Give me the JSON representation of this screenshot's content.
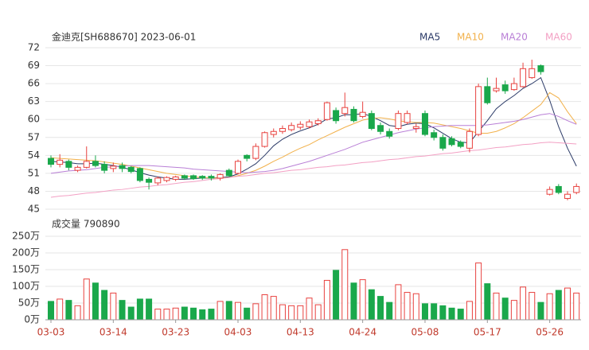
{
  "chart_data": [
    {
      "type": "candlestick",
      "title": "金迪克[SH688670] 2023-06-01",
      "up_color": "#e8423f",
      "down_color": "#1aa84b",
      "open": [
        53.5,
        52.5,
        53,
        51.5,
        52,
        53,
        52.5,
        51.8,
        52.3,
        52,
        51.8,
        50,
        49.4,
        49.8,
        50,
        50.6,
        50.6,
        50.5,
        50.5,
        50.2,
        51.5,
        51,
        54,
        53.5,
        55.5,
        57.5,
        58,
        58.3,
        58.7,
        58.8,
        59.3,
        60,
        61.5,
        61,
        61.7,
        60.5,
        61,
        59,
        58,
        58.5,
        59.5,
        58.5,
        61,
        57.8,
        57,
        56.8,
        56.2,
        55.2,
        57.5,
        65.5,
        64.8,
        65.8,
        65,
        65.5,
        67,
        69,
        47.5,
        48.8,
        46.8,
        47.8
      ],
      "high": [
        54,
        54.2,
        53.3,
        52.3,
        55.5,
        54,
        53,
        52.8,
        52.8,
        52.2,
        52,
        50.3,
        50.5,
        50.5,
        50.6,
        50.8,
        50.8,
        50.7,
        50.8,
        51,
        51.8,
        53.3,
        54.2,
        56,
        58,
        58.5,
        59,
        59.5,
        59.7,
        60,
        60.2,
        63,
        62,
        64.5,
        62.2,
        63,
        61.5,
        59.5,
        58.5,
        61.5,
        61.5,
        59.3,
        61.5,
        58.3,
        57.5,
        57.2,
        56.5,
        58.5,
        66,
        67,
        67,
        66.5,
        67,
        69.5,
        70,
        69.2,
        48.8,
        49.2,
        48,
        49.3
      ],
      "low": [
        52,
        52,
        51.5,
        51.2,
        51.8,
        52,
        51,
        51.2,
        51.2,
        51,
        49.5,
        48.3,
        49,
        49.5,
        49.7,
        49.9,
        49.9,
        49.9,
        49.8,
        49.8,
        50.4,
        50.8,
        53,
        53.2,
        55.3,
        57,
        57.6,
        58,
        58.3,
        58.5,
        59,
        59.8,
        59.3,
        60.5,
        59.5,
        60.2,
        58.2,
        57.5,
        56.8,
        58.2,
        59.2,
        57.8,
        57.2,
        56.5,
        54.8,
        55.5,
        55.2,
        54.5,
        57.2,
        62.5,
        64.5,
        64.3,
        64.8,
        65.3,
        66.8,
        67.5,
        47.3,
        47.5,
        46.5,
        47.5
      ],
      "close": [
        52.5,
        53.2,
        52,
        52,
        53,
        52.3,
        51.5,
        52.2,
        51.8,
        51.3,
        49.8,
        49.5,
        50.2,
        50.3,
        50.4,
        50.2,
        50.1,
        50.2,
        50.2,
        50.8,
        50.6,
        53,
        53.5,
        55.5,
        57.8,
        58,
        58.5,
        59,
        59.2,
        59.6,
        59.8,
        62.8,
        59.8,
        62,
        59.8,
        61.2,
        58.5,
        58,
        57.2,
        61,
        61,
        58.8,
        57.5,
        57,
        55.2,
        55.8,
        55.5,
        58,
        65.5,
        62.8,
        65.2,
        64.8,
        66,
        68.5,
        68.5,
        68,
        48.3,
        47.8,
        47.5,
        48.8
      ],
      "series": [
        {
          "name": "MA5",
          "color": "#2b3a67",
          "values": [
            53.0,
            52.9,
            52.8,
            52.6,
            52.6,
            52.7,
            52.5,
            52.3,
            52.0,
            51.6,
            51.1,
            50.7,
            50.4,
            50.2,
            50.0,
            50.0,
            50.1,
            50.2,
            50.2,
            50.3,
            50.4,
            50.9,
            51.7,
            52.6,
            54.0,
            55.6,
            56.7,
            57.5,
            58.1,
            58.6,
            59.2,
            60.1,
            60.3,
            60.8,
            60.8,
            61.0,
            60.5,
            59.8,
            59.0,
            58.8,
            59.2,
            59.4,
            59.3,
            58.6,
            57.7,
            56.8,
            56.2,
            56.1,
            58.0,
            59.8,
            61.8,
            63.0,
            64.0,
            65.2,
            66.0,
            67.0,
            63.2,
            58.8,
            55.2,
            52.2
          ]
        },
        {
          "name": "MA10",
          "color": "#f2b14b",
          "values": [
            53.6,
            53.5,
            53.4,
            53.3,
            53.2,
            53.1,
            52.9,
            52.7,
            52.5,
            52.2,
            51.9,
            51.6,
            51.3,
            51.0,
            50.8,
            50.6,
            50.4,
            50.3,
            50.2,
            50.2,
            50.3,
            50.6,
            51.0,
            51.5,
            52.2,
            53.0,
            53.7,
            54.5,
            55.2,
            55.8,
            56.6,
            57.3,
            58.0,
            58.7,
            59.3,
            59.9,
            60.2,
            60.3,
            60.1,
            59.8,
            59.6,
            59.5,
            59.5,
            59.4,
            59.1,
            58.8,
            58.5,
            58.1,
            57.7,
            57.7,
            58.0,
            58.6,
            59.3,
            60.3,
            61.4,
            62.5,
            64.5,
            63.6,
            61.3,
            59.3
          ]
        },
        {
          "name": "MA20",
          "color": "#b97fd6",
          "values": [
            51.0,
            51.2,
            51.4,
            51.5,
            51.6,
            51.8,
            52.0,
            52.1,
            52.2,
            52.3,
            52.3,
            52.3,
            52.2,
            52.1,
            52.0,
            51.9,
            51.7,
            51.6,
            51.5,
            51.4,
            51.3,
            51.2,
            51.1,
            51.2,
            51.3,
            51.5,
            51.8,
            52.2,
            52.6,
            53.0,
            53.5,
            54.0,
            54.5,
            55.0,
            55.6,
            56.2,
            56.6,
            57.0,
            57.4,
            57.8,
            58.1,
            58.4,
            58.6,
            58.8,
            58.9,
            59.0,
            59.0,
            59.0,
            59.0,
            59.1,
            59.3,
            59.5,
            59.7,
            60.0,
            60.4,
            60.8,
            61.0,
            60.5,
            59.8,
            59.2
          ]
        },
        {
          "name": "MA60",
          "color": "#f3a0c4",
          "values": [
            47.0,
            47.2,
            47.3,
            47.5,
            47.7,
            47.8,
            48.0,
            48.2,
            48.3,
            48.5,
            48.7,
            48.8,
            49.0,
            49.1,
            49.3,
            49.5,
            49.6,
            49.8,
            50.0,
            50.1,
            50.3,
            50.5,
            50.6,
            50.8,
            51.0,
            51.1,
            51.3,
            51.5,
            51.6,
            51.8,
            52.0,
            52.1,
            52.3,
            52.4,
            52.6,
            52.8,
            52.9,
            53.1,
            53.3,
            53.4,
            53.6,
            53.8,
            53.9,
            54.1,
            54.3,
            54.4,
            54.6,
            54.8,
            54.9,
            55.1,
            55.3,
            55.4,
            55.6,
            55.8,
            55.9,
            56.1,
            56.2,
            56.1,
            56.0,
            55.9
          ]
        }
      ],
      "ylim": [
        45,
        72
      ],
      "yticks": [
        45,
        48,
        51,
        54,
        57,
        60,
        63,
        66,
        69,
        72
      ],
      "grid": true
    },
    {
      "type": "bar",
      "title": "成交量 790890",
      "categories": [
        "03-03",
        null,
        null,
        null,
        null,
        null,
        null,
        "03-14",
        null,
        null,
        null,
        null,
        null,
        null,
        "03-23",
        null,
        null,
        null,
        null,
        null,
        null,
        "04-03",
        null,
        null,
        null,
        null,
        null,
        null,
        "04-13",
        null,
        null,
        null,
        null,
        null,
        null,
        "04-24",
        null,
        null,
        null,
        null,
        null,
        null,
        "05-08",
        null,
        null,
        null,
        null,
        null,
        null,
        "05-17",
        null,
        null,
        null,
        null,
        null,
        null,
        "05-26",
        null,
        null,
        null
      ],
      "values": [
        55,
        62,
        58,
        42,
        122,
        110,
        88,
        80,
        58,
        38,
        62,
        62,
        32,
        32,
        35,
        38,
        35,
        30,
        32,
        55,
        55,
        52,
        35,
        48,
        75,
        70,
        45,
        42,
        42,
        65,
        45,
        118,
        148,
        210,
        110,
        120,
        90,
        70,
        52,
        105,
        82,
        78,
        48,
        48,
        42,
        35,
        32,
        55,
        170,
        108,
        80,
        65,
        58,
        98,
        82,
        52,
        78,
        88,
        95,
        80
      ],
      "ylim": [
        0,
        250
      ],
      "yticks": [
        {
          "value": 0,
          "label": "0万"
        },
        {
          "value": 50,
          "label": "50万"
        },
        {
          "value": 100,
          "label": "100万"
        },
        {
          "value": 150,
          "label": "150万"
        },
        {
          "value": 200,
          "label": "200万"
        },
        {
          "value": 250,
          "label": "250万"
        }
      ],
      "grid": true
    }
  ]
}
